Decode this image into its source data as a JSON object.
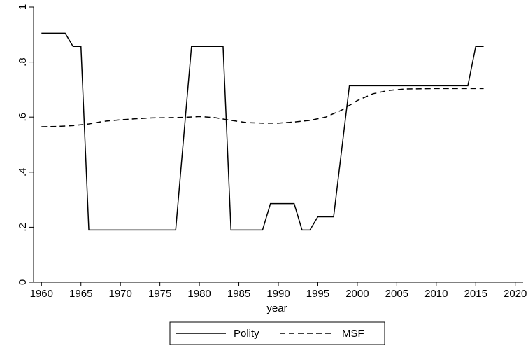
{
  "chart_data": {
    "type": "line",
    "xlabel": "year",
    "ylabel": "",
    "xlim": [
      1959,
      2021
    ],
    "ylim": [
      0,
      1
    ],
    "xticks": [
      1960,
      1965,
      1970,
      1975,
      1980,
      1985,
      1990,
      1995,
      2000,
      2005,
      2010,
      2015,
      2020
    ],
    "yticks": [
      {
        "value": 0,
        "label": "0"
      },
      {
        "value": 0.2,
        "label": ".2"
      },
      {
        "value": 0.4,
        "label": ".4"
      },
      {
        "value": 0.6,
        "label": ".6"
      },
      {
        "value": 0.8,
        "label": ".8"
      },
      {
        "value": 1,
        "label": "1"
      }
    ],
    "grid": false,
    "legend_position": "bottom",
    "series": [
      {
        "name": "Polity",
        "style": "solid",
        "color": "#000000",
        "points": [
          [
            1960,
            0.905
          ],
          [
            1963,
            0.905
          ],
          [
            1964,
            0.857
          ],
          [
            1965,
            0.857
          ],
          [
            1966,
            0.19
          ],
          [
            1977,
            0.19
          ],
          [
            1979,
            0.857
          ],
          [
            1983,
            0.857
          ],
          [
            1984,
            0.19
          ],
          [
            1988,
            0.19
          ],
          [
            1989,
            0.286
          ],
          [
            1992,
            0.286
          ],
          [
            1993,
            0.19
          ],
          [
            1994,
            0.19
          ],
          [
            1995,
            0.238
          ],
          [
            1997,
            0.238
          ],
          [
            1999,
            0.714
          ],
          [
            2014,
            0.714
          ],
          [
            2015,
            0.857
          ],
          [
            2016,
            0.857
          ]
        ]
      },
      {
        "name": "MSF",
        "style": "dashed",
        "color": "#000000",
        "points": [
          [
            1960,
            0.565
          ],
          [
            1962,
            0.566
          ],
          [
            1964,
            0.569
          ],
          [
            1966,
            0.575
          ],
          [
            1968,
            0.585
          ],
          [
            1970,
            0.59
          ],
          [
            1972,
            0.594
          ],
          [
            1974,
            0.597
          ],
          [
            1976,
            0.598
          ],
          [
            1978,
            0.599
          ],
          [
            1980,
            0.602
          ],
          [
            1982,
            0.598
          ],
          [
            1984,
            0.588
          ],
          [
            1986,
            0.58
          ],
          [
            1988,
            0.578
          ],
          [
            1990,
            0.578
          ],
          [
            1992,
            0.582
          ],
          [
            1994,
            0.588
          ],
          [
            1996,
            0.6
          ],
          [
            1998,
            0.625
          ],
          [
            2000,
            0.66
          ],
          [
            2002,
            0.685
          ],
          [
            2004,
            0.697
          ],
          [
            2006,
            0.702
          ],
          [
            2008,
            0.703
          ],
          [
            2010,
            0.704
          ],
          [
            2012,
            0.704
          ],
          [
            2014,
            0.704
          ],
          [
            2016,
            0.704
          ]
        ]
      }
    ]
  }
}
